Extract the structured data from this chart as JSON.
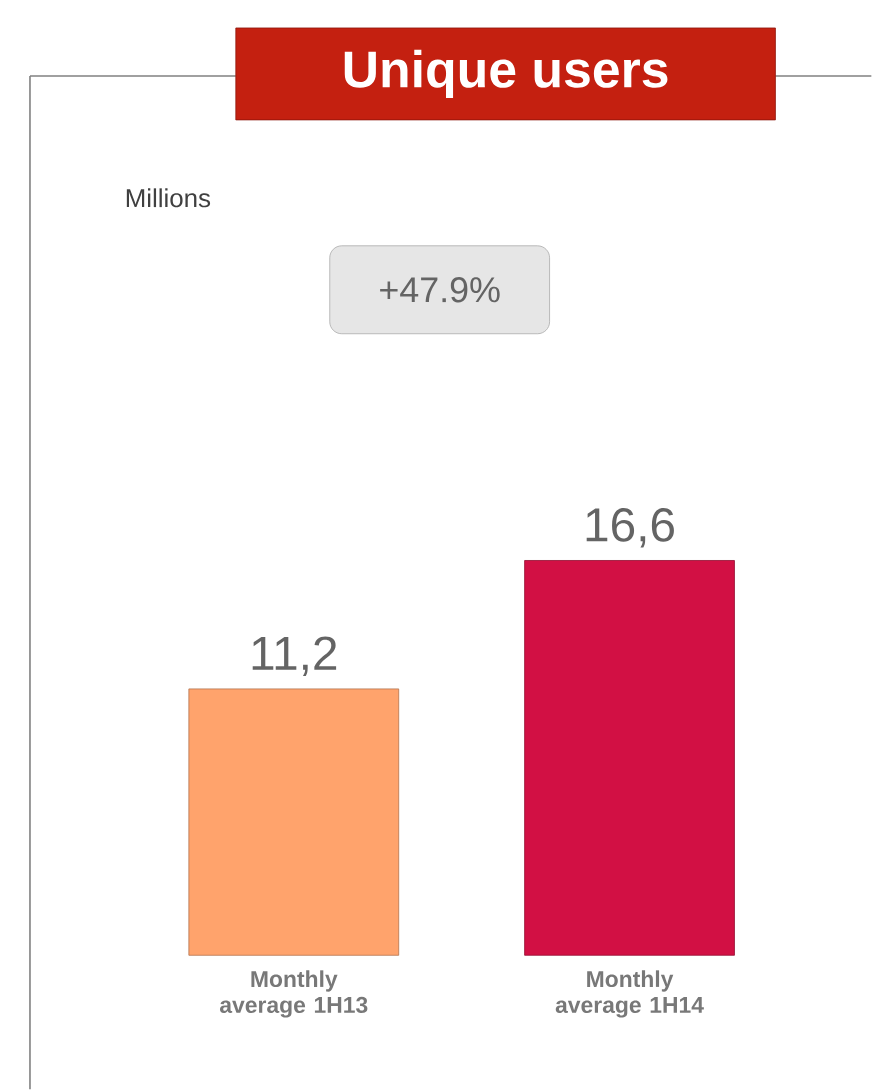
{
  "chart_data": {
    "type": "bar",
    "title": "Unique users",
    "annotations": [
      "Millions",
      "+47.9%"
    ],
    "categories": [
      "Monthly average 1H13",
      "Monthly average 1H14"
    ],
    "values": [
      11.2,
      16.6
    ],
    "colors": [
      "#ffa36c",
      "#d21044"
    ],
    "value_labels": [
      "11,2",
      "16,6"
    ]
  }
}
